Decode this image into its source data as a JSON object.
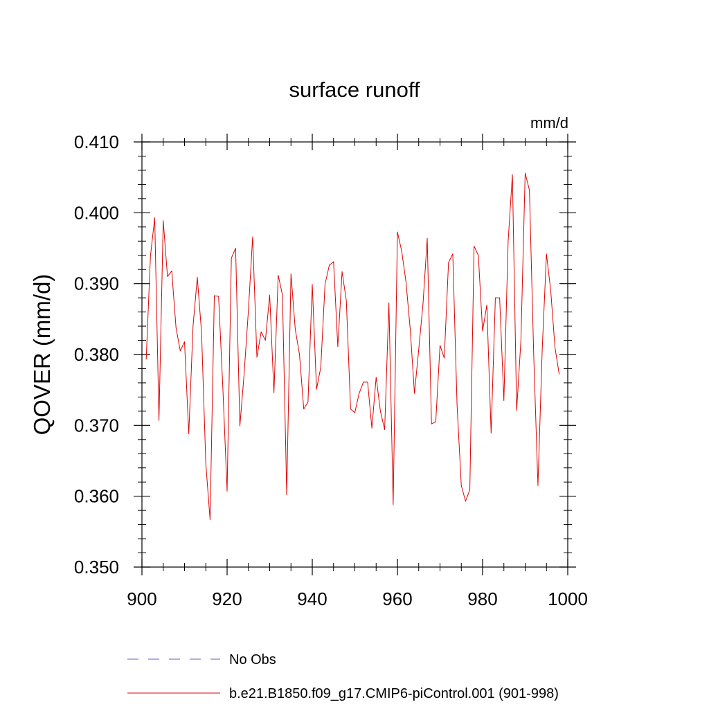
{
  "chart_data": {
    "type": "line",
    "title": "surface runoff",
    "units_label": "mm/d",
    "xlabel": "",
    "ylabel": "QOVER  (mm/d)",
    "xlim": [
      900,
      1000
    ],
    "ylim": [
      0.35,
      0.41
    ],
    "x_ticks": [
      900,
      920,
      940,
      960,
      980,
      1000
    ],
    "y_ticks": [
      0.35,
      0.36,
      0.37,
      0.38,
      0.39,
      0.4,
      0.41
    ],
    "x_tick_labels": [
      "900",
      "920",
      "940",
      "960",
      "980",
      "1000"
    ],
    "y_tick_labels": [
      "0.350",
      "0.360",
      "0.370",
      "0.380",
      "0.390",
      "0.400",
      "0.410"
    ],
    "grid": false,
    "legend": {
      "placement": "bottom-left",
      "entries": [
        {
          "label": "No Obs",
          "color": "#6a5acd",
          "style": "dashed"
        },
        {
          "label": "b.e21.B1850.f09_g17.CMIP6-piControl.001 (901-998)",
          "color": "#e00000",
          "style": "solid"
        }
      ]
    },
    "series": [
      {
        "name": "b.e21.B1850.f09_g17.CMIP6-piControl.001 (901-998)",
        "color": "#e00000",
        "x": [
          901,
          902,
          903,
          904,
          905,
          906,
          907,
          908,
          909,
          910,
          911,
          912,
          913,
          914,
          915,
          916,
          917,
          918,
          919,
          920,
          921,
          922,
          923,
          924,
          925,
          926,
          927,
          928,
          929,
          930,
          931,
          932,
          933,
          934,
          935,
          936,
          937,
          938,
          939,
          940,
          941,
          942,
          943,
          944,
          945,
          946,
          947,
          948,
          949,
          950,
          951,
          952,
          953,
          954,
          955,
          956,
          957,
          958,
          959,
          960,
          961,
          962,
          963,
          964,
          965,
          966,
          967,
          968,
          969,
          970,
          971,
          972,
          973,
          974,
          975,
          976,
          977,
          978,
          979,
          980,
          981,
          982,
          983,
          984,
          985,
          986,
          987,
          988,
          989,
          990,
          991,
          992,
          993,
          994,
          995,
          996,
          997,
          998
        ],
        "y": [
          0.3793,
          0.3939,
          0.3993,
          0.3707,
          0.3989,
          0.391,
          0.3918,
          0.3838,
          0.3805,
          0.3818,
          0.3688,
          0.384,
          0.3909,
          0.3831,
          0.3646,
          0.3567,
          0.3883,
          0.3882,
          0.3753,
          0.3607,
          0.3936,
          0.395,
          0.3699,
          0.3773,
          0.3862,
          0.3966,
          0.3796,
          0.3832,
          0.382,
          0.3884,
          0.3746,
          0.3912,
          0.3884,
          0.3602,
          0.3914,
          0.3836,
          0.38,
          0.3723,
          0.3733,
          0.3899,
          0.3751,
          0.3782,
          0.3899,
          0.3926,
          0.3931,
          0.3811,
          0.3917,
          0.3876,
          0.3723,
          0.3718,
          0.3745,
          0.3761,
          0.3761,
          0.3696,
          0.3768,
          0.372,
          0.3694,
          0.3873,
          0.3588,
          0.3973,
          0.3946,
          0.3903,
          0.3836,
          0.3745,
          0.3807,
          0.3871,
          0.3964,
          0.3702,
          0.3705,
          0.3813,
          0.3795,
          0.393,
          0.3942,
          0.3729,
          0.3615,
          0.3593,
          0.3609,
          0.3953,
          0.394,
          0.3833,
          0.387,
          0.3689,
          0.388,
          0.388,
          0.3735,
          0.396,
          0.4054,
          0.3721,
          0.382,
          0.4056,
          0.4032,
          0.38,
          0.3615,
          0.3807,
          0.3942,
          0.389,
          0.381,
          0.3772
        ]
      }
    ]
  }
}
